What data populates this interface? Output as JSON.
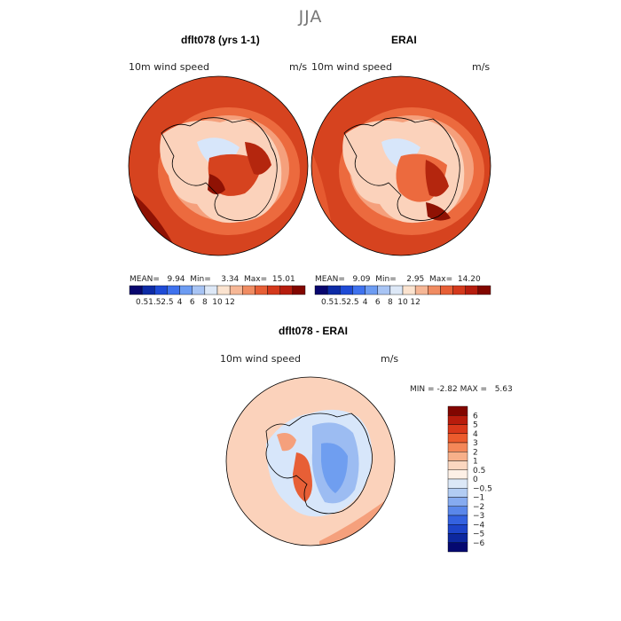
{
  "season": "JJA",
  "panels": {
    "model": {
      "title": "dflt078 (yrs 1-1)",
      "field": "10m wind speed",
      "units": "m/s",
      "mean_label": "MEAN=",
      "mean": "9.94",
      "min_label": "Min=",
      "min": "3.34",
      "max_label": "Max=",
      "max": "15.01"
    },
    "obs": {
      "title": "ERAI",
      "field": "10m wind speed",
      "units": "m/s",
      "mean_label": "MEAN=",
      "mean": "9.09",
      "min_label": "Min=",
      "min": "2.95",
      "max_label": "Max=",
      "max": "14.20"
    },
    "diff": {
      "title": "dflt078 - ERAI",
      "field": "10m wind speed",
      "units": "m/s",
      "min_label": "MIN =",
      "min": "-2.82",
      "max_label": "MAX =",
      "max": "5.63"
    }
  },
  "colorbar_abs": {
    "colors": [
      "#08066e",
      "#0d2ba6",
      "#1f4bd6",
      "#3f72ee",
      "#6d9cf2",
      "#a8c4f4",
      "#dde8f7",
      "#fbe3cf",
      "#f6b796",
      "#f08c62",
      "#e75f36",
      "#d4391c",
      "#b61d0e",
      "#820600"
    ],
    "ticks": [
      "0.5",
      "1.5",
      "2.5",
      "4",
      "6",
      "8",
      "10",
      "12"
    ]
  },
  "colorbar_diff": {
    "colors": [
      "#820600",
      "#b81c0c",
      "#d9381a",
      "#ec5b2d",
      "#f48758",
      "#f7b08a",
      "#fbd7c0",
      "#fdf0e6",
      "#dce8f7",
      "#b2ccf3",
      "#86abf0",
      "#5a87ea",
      "#3462e0",
      "#1d44c9",
      "#0d289f",
      "#050970"
    ],
    "ticks": [
      "6",
      "5",
      "4",
      "3",
      "2",
      "1",
      "0.5",
      "0",
      "−0.5",
      "−1",
      "−2",
      "−3",
      "−4",
      "−5",
      "−6"
    ]
  },
  "colors": {
    "deep_red": "#8f1204",
    "red": "#d6431f",
    "orange": "#ec6a3e",
    "salmon": "#f5a07c",
    "light_salmon": "#fbd2bb",
    "light_blue": "#d7e6fa",
    "blue": "#6f9ef0"
  }
}
